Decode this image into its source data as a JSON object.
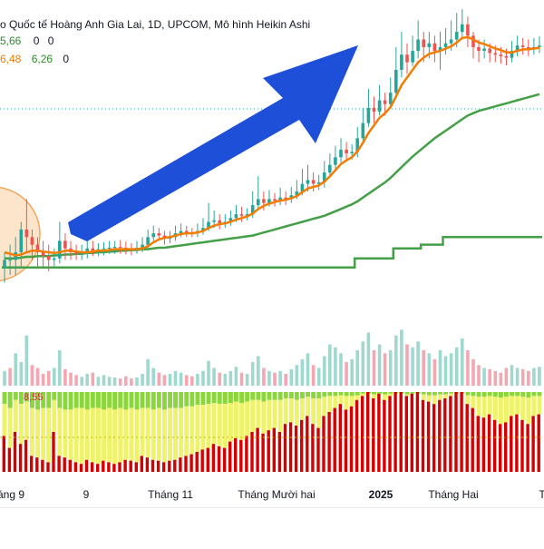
{
  "legend": {
    "title": "o Quốc tế Hoàng Anh Gia Lai, 1D, UPCOM, Mô hình Heikin Ashi",
    "title_vals": [
      "5,66",
      "0",
      "0"
    ],
    "row2_vals": [
      "6,48",
      "6,26",
      "0"
    ]
  },
  "indicator": {
    "label": "8,55"
  },
  "colors": {
    "bull": "#26a69a",
    "bear": "#ef5350",
    "ma_orange": "#f57c00",
    "ma_green": "#43a047",
    "arrow": "#1e4fd8",
    "vol_bull": "#9fd8cf",
    "vol_bear": "#f4a7b0",
    "ind_green": "#8bd63a",
    "ind_yellow": "#eef36a",
    "ind_red": "#d50000",
    "circle_fill": "#fbd3a8",
    "circle_stroke": "#f5a45b"
  },
  "chart_data": {
    "type": "candlestick",
    "title": "o Quốc tế Hoàng Anh Gia Lai, 1D, UPCOM, Mô hình Heikin Ashi",
    "x_tick_labels": [
      "áng 9",
      "9",
      "Tháng 11",
      "Tháng Mười hai",
      "2025",
      "Tháng Hai",
      "T"
    ],
    "bold_ticks": [
      "2025"
    ],
    "ylim": [
      4.0,
      8.0
    ],
    "candles": [
      [
        4.6,
        4.7,
        4.4,
        4.8
      ],
      [
        4.7,
        4.7,
        4.5,
        4.9
      ],
      [
        4.7,
        4.8,
        4.5,
        5.0
      ],
      [
        4.8,
        5.1,
        4.6,
        5.2
      ],
      [
        5.1,
        5.0,
        4.8,
        5.5
      ],
      [
        5.0,
        4.9,
        4.7,
        5.1
      ],
      [
        4.9,
        4.8,
        4.6,
        5.0
      ],
      [
        4.8,
        4.75,
        4.6,
        4.95
      ],
      [
        4.75,
        4.7,
        4.55,
        4.9
      ],
      [
        4.7,
        4.72,
        4.6,
        4.85
      ],
      [
        4.72,
        4.95,
        4.65,
        5.2
      ],
      [
        4.95,
        4.85,
        4.7,
        5.05
      ],
      [
        4.85,
        4.8,
        4.7,
        4.95
      ],
      [
        4.8,
        4.78,
        4.7,
        4.9
      ],
      [
        4.78,
        4.8,
        4.7,
        4.9
      ],
      [
        4.8,
        4.85,
        4.72,
        4.95
      ],
      [
        4.85,
        4.82,
        4.75,
        4.95
      ],
      [
        4.82,
        4.84,
        4.75,
        4.92
      ],
      [
        4.84,
        4.85,
        4.76,
        4.93
      ],
      [
        4.85,
        4.86,
        4.78,
        4.95
      ],
      [
        4.86,
        4.87,
        4.78,
        4.95
      ],
      [
        4.87,
        4.86,
        4.78,
        4.96
      ],
      [
        4.86,
        4.85,
        4.77,
        4.94
      ],
      [
        4.85,
        4.84,
        4.76,
        4.92
      ],
      [
        4.84,
        4.86,
        4.78,
        4.95
      ],
      [
        4.86,
        4.9,
        4.8,
        5.0
      ],
      [
        4.9,
        5.0,
        4.85,
        5.1
      ],
      [
        5.0,
        5.05,
        4.95,
        5.15
      ],
      [
        5.05,
        5.02,
        4.95,
        5.12
      ],
      [
        5.02,
        4.98,
        4.9,
        5.08
      ],
      [
        4.98,
        5.0,
        4.92,
        5.08
      ],
      [
        5.0,
        5.05,
        4.95,
        5.15
      ],
      [
        5.05,
        5.08,
        5.0,
        5.18
      ],
      [
        5.08,
        5.06,
        5.0,
        5.15
      ],
      [
        5.06,
        5.05,
        5.0,
        5.12
      ],
      [
        5.05,
        5.08,
        5.0,
        5.18
      ],
      [
        5.08,
        5.12,
        5.03,
        5.25
      ],
      [
        5.12,
        5.2,
        5.08,
        5.45
      ],
      [
        5.2,
        5.22,
        5.12,
        5.35
      ],
      [
        5.22,
        5.18,
        5.1,
        5.3
      ],
      [
        5.18,
        5.2,
        5.12,
        5.3
      ],
      [
        5.2,
        5.25,
        5.15,
        5.35
      ],
      [
        5.25,
        5.3,
        5.2,
        5.42
      ],
      [
        5.3,
        5.28,
        5.2,
        5.4
      ],
      [
        5.28,
        5.3,
        5.22,
        5.38
      ],
      [
        5.3,
        5.42,
        5.25,
        5.6
      ],
      [
        5.42,
        5.5,
        5.35,
        5.8
      ],
      [
        5.5,
        5.45,
        5.35,
        5.6
      ],
      [
        5.45,
        5.5,
        5.4,
        5.62
      ],
      [
        5.5,
        5.48,
        5.4,
        5.58
      ],
      [
        5.48,
        5.52,
        5.42,
        5.65
      ],
      [
        5.52,
        5.5,
        5.42,
        5.6
      ],
      [
        5.5,
        5.55,
        5.45,
        5.66
      ],
      [
        5.55,
        5.6,
        5.5,
        5.75
      ],
      [
        5.6,
        5.7,
        5.55,
        5.9
      ],
      [
        5.7,
        5.75,
        5.6,
        5.95
      ],
      [
        5.75,
        5.7,
        5.6,
        5.85
      ],
      [
        5.7,
        5.72,
        5.62,
        5.82
      ],
      [
        5.72,
        5.85,
        5.65,
        6.0
      ],
      [
        5.85,
        5.95,
        5.8,
        6.1
      ],
      [
        5.95,
        6.05,
        5.88,
        6.2
      ],
      [
        6.05,
        6.15,
        5.98,
        6.3
      ],
      [
        6.15,
        6.1,
        6.0,
        6.25
      ],
      [
        6.1,
        6.12,
        6.02,
        6.22
      ],
      [
        6.12,
        6.3,
        6.05,
        6.45
      ],
      [
        6.3,
        6.5,
        6.25,
        6.7
      ],
      [
        6.5,
        6.7,
        6.45,
        6.95
      ],
      [
        6.7,
        6.65,
        6.5,
        6.85
      ],
      [
        6.65,
        6.8,
        6.6,
        7.0
      ],
      [
        6.8,
        6.75,
        6.6,
        6.9
      ],
      [
        6.75,
        6.9,
        6.7,
        7.1
      ],
      [
        6.9,
        7.2,
        6.85,
        7.5
      ],
      [
        7.2,
        7.4,
        7.1,
        7.7
      ],
      [
        7.4,
        7.3,
        7.15,
        7.55
      ],
      [
        7.3,
        7.45,
        7.25,
        7.65
      ],
      [
        7.45,
        7.6,
        7.35,
        7.85
      ],
      [
        7.6,
        7.5,
        7.3,
        7.7
      ],
      [
        7.5,
        7.55,
        7.35,
        7.7
      ],
      [
        7.55,
        7.45,
        7.3,
        7.65
      ],
      [
        7.45,
        7.5,
        7.2,
        7.7
      ],
      [
        7.5,
        7.55,
        7.4,
        7.75
      ],
      [
        7.55,
        7.6,
        7.45,
        7.85
      ],
      [
        7.6,
        7.7,
        7.5,
        7.95
      ],
      [
        7.7,
        7.8,
        7.6,
        8.0
      ],
      [
        7.8,
        7.65,
        7.5,
        7.9
      ],
      [
        7.65,
        7.5,
        7.35,
        7.7
      ],
      [
        7.5,
        7.45,
        7.3,
        7.6
      ],
      [
        7.45,
        7.48,
        7.35,
        7.6
      ],
      [
        7.48,
        7.42,
        7.3,
        7.55
      ],
      [
        7.42,
        7.4,
        7.3,
        7.52
      ],
      [
        7.4,
        7.38,
        7.28,
        7.5
      ],
      [
        7.38,
        7.36,
        7.26,
        7.48
      ],
      [
        7.36,
        7.45,
        7.3,
        7.58
      ],
      [
        7.45,
        7.52,
        7.38,
        7.65
      ],
      [
        7.52,
        7.5,
        7.4,
        7.62
      ],
      [
        7.5,
        7.48,
        7.38,
        7.6
      ],
      [
        7.48,
        7.5,
        7.4,
        7.62
      ],
      [
        7.5,
        7.52,
        7.42,
        7.64
      ]
    ],
    "ma_orange": [
      4.8,
      4.78,
      4.76,
      4.77,
      4.8,
      4.82,
      4.82,
      4.81,
      4.8,
      4.79,
      4.8,
      4.82,
      4.82,
      4.81,
      4.8,
      4.8,
      4.81,
      4.82,
      4.82,
      4.83,
      4.84,
      4.84,
      4.84,
      4.84,
      4.84,
      4.85,
      4.88,
      4.93,
      4.97,
      4.99,
      5.0,
      5.02,
      5.04,
      5.05,
      5.05,
      5.06,
      5.08,
      5.12,
      5.15,
      5.17,
      5.18,
      5.2,
      5.23,
      5.25,
      5.27,
      5.31,
      5.37,
      5.41,
      5.44,
      5.46,
      5.48,
      5.49,
      5.51,
      5.54,
      5.59,
      5.64,
      5.66,
      5.68,
      5.73,
      5.8,
      5.88,
      5.96,
      6.01,
      6.05,
      6.13,
      6.24,
      6.37,
      6.47,
      6.57,
      6.63,
      6.71,
      6.85,
      7.0,
      7.1,
      7.2,
      7.3,
      7.36,
      7.41,
      7.43,
      7.45,
      7.48,
      7.51,
      7.56,
      7.62,
      7.63,
      7.6,
      7.56,
      7.54,
      7.51,
      7.48,
      7.46,
      7.43,
      7.43,
      7.45,
      7.47,
      7.47,
      7.48,
      7.49
    ],
    "ma_green": [
      4.72,
      4.72,
      4.72,
      4.73,
      4.74,
      4.74,
      4.75,
      4.75,
      4.75,
      4.76,
      4.76,
      4.77,
      4.77,
      4.78,
      4.78,
      4.79,
      4.79,
      4.8,
      4.8,
      4.81,
      4.81,
      4.82,
      4.82,
      4.83,
      4.83,
      4.84,
      4.84,
      4.85,
      4.86,
      4.86,
      4.87,
      4.88,
      4.89,
      4.9,
      4.91,
      4.92,
      4.93,
      4.94,
      4.95,
      4.96,
      4.97,
      4.98,
      4.99,
      5.0,
      5.01,
      5.02,
      5.04,
      5.06,
      5.08,
      5.1,
      5.12,
      5.14,
      5.16,
      5.18,
      5.2,
      5.22,
      5.24,
      5.26,
      5.28,
      5.31,
      5.34,
      5.37,
      5.4,
      5.43,
      5.47,
      5.52,
      5.57,
      5.62,
      5.67,
      5.72,
      5.78,
      5.85,
      5.92,
      5.99,
      6.06,
      6.12,
      6.18,
      6.24,
      6.3,
      6.35,
      6.4,
      6.45,
      6.5,
      6.55,
      6.6,
      6.63,
      6.66,
      6.68,
      6.7,
      6.72,
      6.74,
      6.76,
      6.78,
      6.8,
      6.82,
      6.84,
      6.86,
      6.88
    ],
    "stop_line": [
      4.6,
      4.6,
      4.6,
      4.6,
      4.6,
      4.6,
      4.6,
      4.6,
      4.6,
      4.6,
      4.6,
      4.6,
      4.6,
      4.6,
      4.6,
      4.6,
      4.6,
      4.6,
      4.6,
      4.6,
      4.6,
      4.6,
      4.6,
      4.6,
      4.6,
      4.6,
      4.6,
      4.6,
      4.6,
      4.6,
      4.6,
      4.6,
      4.6,
      4.6,
      4.6,
      4.6,
      4.6,
      4.6,
      4.6,
      4.6,
      4.6,
      4.6,
      4.6,
      4.6,
      4.6,
      4.6,
      4.6,
      4.6,
      4.6,
      4.6,
      4.6,
      4.6,
      4.6,
      4.6,
      4.6,
      4.6,
      4.6,
      4.6,
      4.6,
      4.6,
      4.6,
      4.6,
      4.6,
      4.6,
      4.72,
      4.72,
      4.72,
      4.72,
      4.72,
      4.72,
      4.72,
      4.85,
      4.85,
      4.85,
      4.85,
      4.85,
      4.9,
      4.9,
      4.9,
      4.9,
      5.0,
      5.0,
      5.0,
      5.0,
      5.0,
      5.0,
      5.0,
      5.0,
      5.0,
      5.0,
      5.0,
      5.0,
      5.0,
      5.0,
      5.0,
      5.0,
      5.0,
      5.0
    ],
    "volume_bars": [
      0.25,
      0.3,
      0.55,
      0.4,
      0.85,
      0.35,
      0.3,
      0.2,
      0.25,
      0.3,
      0.6,
      0.28,
      0.22,
      0.18,
      0.15,
      0.2,
      0.22,
      0.15,
      0.18,
      0.15,
      0.14,
      0.12,
      0.16,
      0.12,
      0.14,
      0.2,
      0.45,
      0.3,
      0.22,
      0.18,
      0.2,
      0.25,
      0.22,
      0.18,
      0.16,
      0.2,
      0.25,
      0.42,
      0.3,
      0.22,
      0.2,
      0.25,
      0.32,
      0.22,
      0.2,
      0.4,
      0.5,
      0.3,
      0.25,
      0.22,
      0.25,
      0.2,
      0.28,
      0.35,
      0.45,
      0.55,
      0.35,
      0.3,
      0.5,
      0.7,
      0.65,
      0.55,
      0.4,
      0.45,
      0.6,
      0.75,
      0.9,
      0.6,
      0.7,
      0.55,
      0.6,
      0.85,
      0.95,
      0.7,
      0.65,
      0.75,
      0.6,
      0.55,
      0.45,
      0.6,
      0.5,
      0.55,
      0.65,
      0.8,
      0.6,
      0.45,
      0.35,
      0.3,
      0.28,
      0.25,
      0.22,
      0.3,
      0.35,
      0.3,
      0.28,
      0.25,
      0.3,
      0.32
    ],
    "volume_up": [
      true,
      false,
      true,
      true,
      true,
      false,
      false,
      false,
      false,
      true,
      true,
      false,
      false,
      false,
      true,
      true,
      false,
      true,
      true,
      true,
      true,
      false,
      false,
      false,
      true,
      true,
      true,
      true,
      false,
      false,
      true,
      true,
      true,
      false,
      false,
      true,
      true,
      true,
      true,
      false,
      true,
      true,
      true,
      false,
      true,
      true,
      true,
      false,
      true,
      false,
      true,
      false,
      true,
      true,
      true,
      true,
      false,
      true,
      true,
      true,
      true,
      true,
      false,
      true,
      true,
      true,
      true,
      false,
      true,
      false,
      true,
      true,
      true,
      false,
      true,
      true,
      false,
      true,
      false,
      true,
      true,
      true,
      true,
      true,
      false,
      false,
      false,
      true,
      false,
      false,
      false,
      false,
      true,
      true,
      false,
      false,
      true,
      true
    ],
    "indicator_red_levels": [
      0.45,
      0.3,
      0.5,
      0.35,
      0.4,
      0.2,
      0.18,
      0.15,
      0.12,
      0.5,
      0.2,
      0.18,
      0.15,
      0.12,
      0.1,
      0.15,
      0.12,
      0.1,
      0.14,
      0.12,
      0.1,
      0.12,
      0.15,
      0.14,
      0.12,
      0.2,
      0.18,
      0.15,
      0.14,
      0.12,
      0.14,
      0.15,
      0.18,
      0.2,
      0.22,
      0.25,
      0.28,
      0.3,
      0.35,
      0.32,
      0.3,
      0.38,
      0.42,
      0.4,
      0.45,
      0.5,
      0.55,
      0.48,
      0.52,
      0.55,
      0.5,
      0.6,
      0.62,
      0.58,
      0.65,
      0.7,
      0.6,
      0.55,
      0.7,
      0.75,
      0.8,
      0.85,
      0.78,
      0.82,
      0.9,
      0.95,
      1.0,
      0.92,
      0.98,
      0.9,
      0.95,
      1.0,
      1.0,
      0.95,
      0.98,
      1.0,
      0.9,
      0.88,
      0.85,
      0.9,
      0.92,
      0.95,
      1.0,
      1.0,
      0.85,
      0.8,
      0.7,
      0.68,
      0.72,
      0.65,
      0.6,
      0.62,
      0.7,
      0.72,
      0.65,
      0.6,
      0.7,
      0.72
    ],
    "indicator_green_levels": [
      0.15,
      0.2,
      0.1,
      0.15,
      0.12,
      0.2,
      0.22,
      0.2,
      0.2,
      0.1,
      0.2,
      0.22,
      0.22,
      0.2,
      0.2,
      0.22,
      0.2,
      0.2,
      0.22,
      0.2,
      0.22,
      0.2,
      0.22,
      0.2,
      0.22,
      0.2,
      0.2,
      0.22,
      0.2,
      0.22,
      0.2,
      0.2,
      0.2,
      0.18,
      0.18,
      0.16,
      0.16,
      0.15,
      0.14,
      0.15,
      0.15,
      0.14,
      0.12,
      0.14,
      0.12,
      0.1,
      0.1,
      0.12,
      0.1,
      0.1,
      0.1,
      0.08,
      0.08,
      0.1,
      0.08,
      0.06,
      0.08,
      0.08,
      0.06,
      0.05,
      0.05,
      0.04,
      0.05,
      0.05,
      0.04,
      0.02,
      0.02,
      0.03,
      0.02,
      0.03,
      0.02,
      0.02,
      0.02,
      0.03,
      0.02,
      0.02,
      0.03,
      0.04,
      0.04,
      0.03,
      0.03,
      0.02,
      0.02,
      0.02,
      0.04,
      0.05,
      0.06,
      0.06,
      0.05,
      0.06,
      0.07,
      0.06,
      0.05,
      0.05,
      0.06,
      0.07,
      0.05,
      0.05
    ],
    "grid": false
  }
}
